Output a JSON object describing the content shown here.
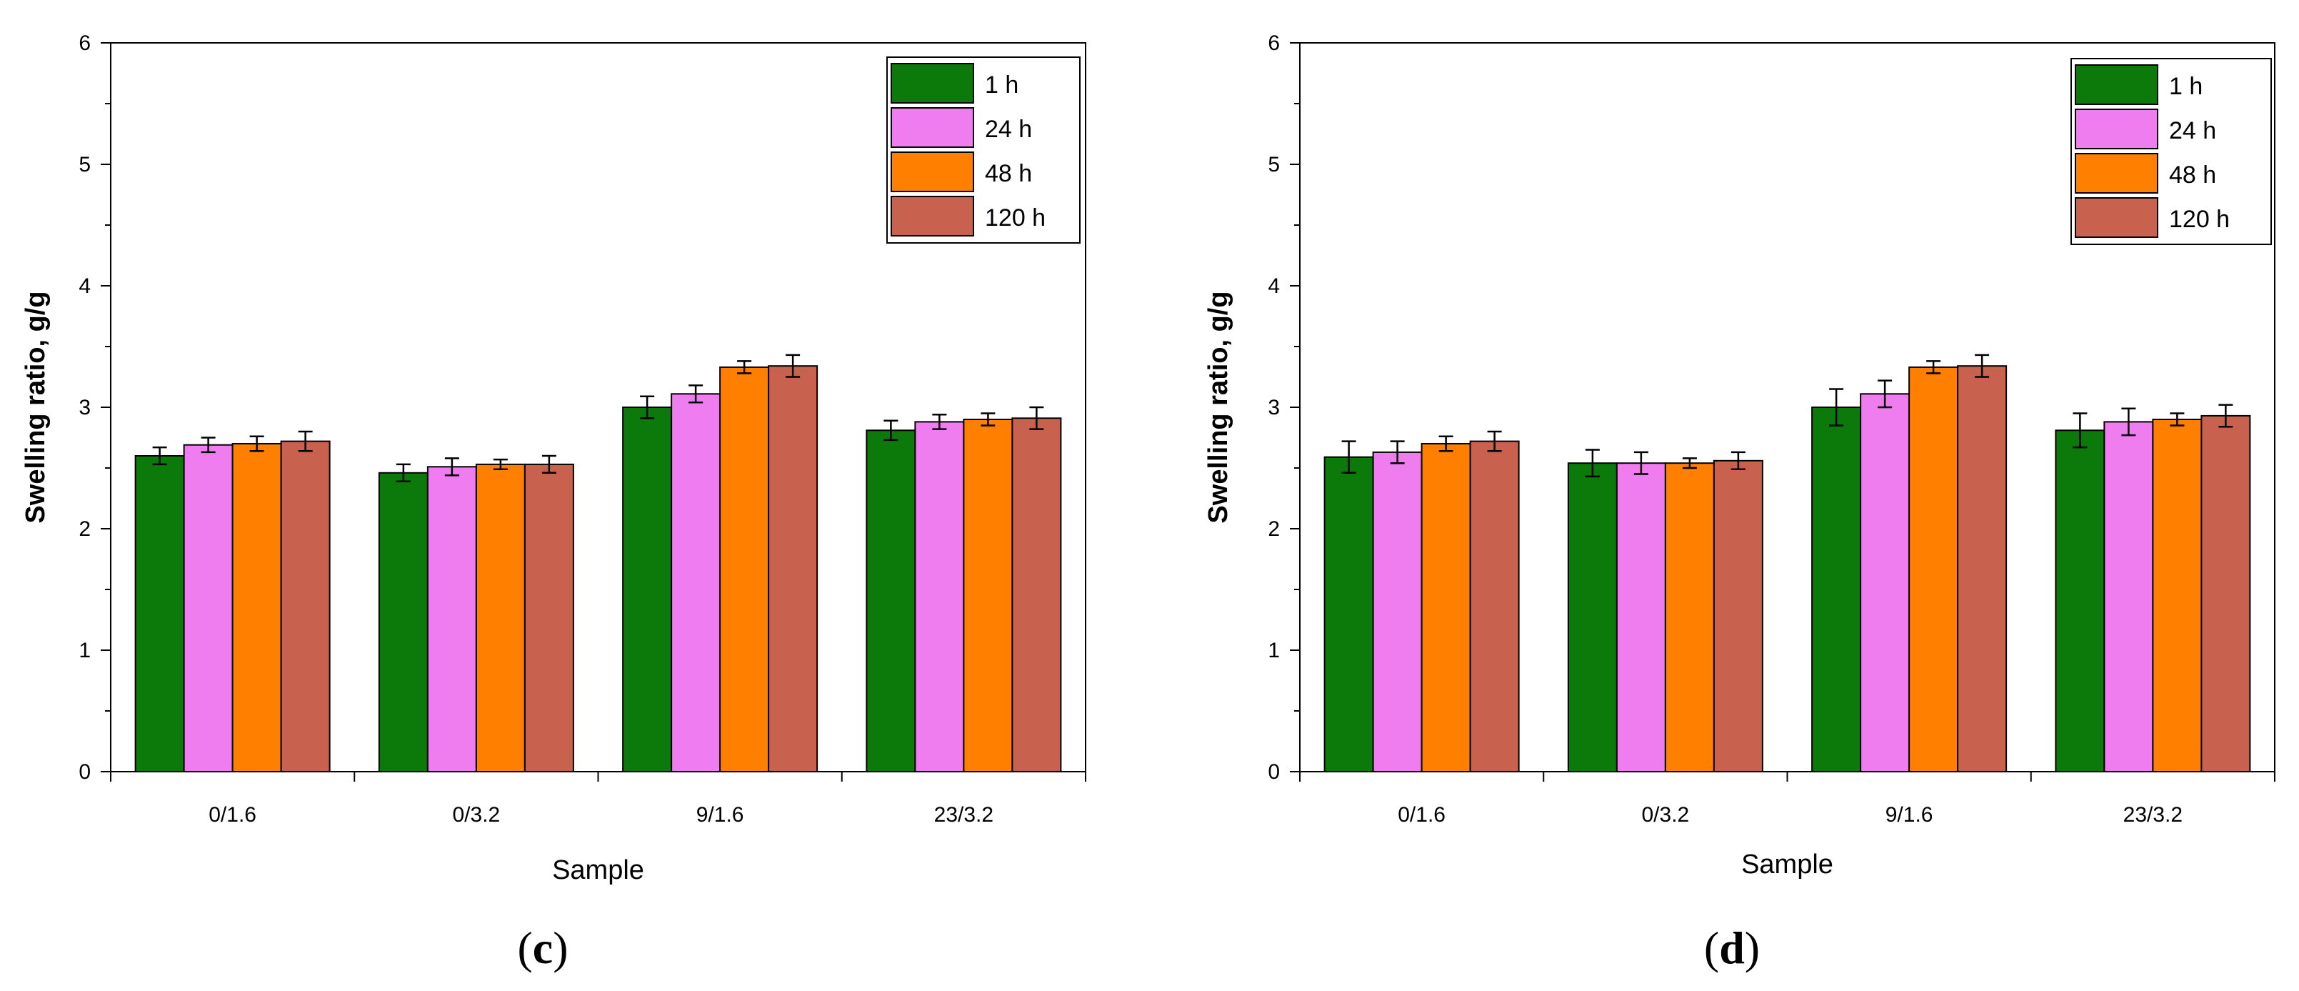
{
  "chart_data": [
    {
      "panel": "(c)",
      "panel_letter": "c",
      "type": "bar",
      "xlabel": "Sample",
      "ylabel": "Swelling ratio, g/g",
      "ylim": [
        0,
        6
      ],
      "yticks": [
        "0",
        "1",
        "2",
        "3",
        "4",
        "5",
        "6"
      ],
      "categories": [
        "0/1.6",
        "0/3.2",
        "9/1.6",
        "23/3.2"
      ],
      "legend_position": "top-right",
      "series": [
        {
          "name": "1 h",
          "color": "#0b7a0b",
          "values": [
            2.6,
            2.46,
            3.0,
            2.81
          ],
          "errors": [
            0.07,
            0.07,
            0.09,
            0.08
          ]
        },
        {
          "name": "24 h",
          "color": "#f07df0",
          "values": [
            2.69,
            2.51,
            3.11,
            2.88
          ],
          "errors": [
            0.06,
            0.07,
            0.07,
            0.06
          ]
        },
        {
          "name": "48 h",
          "color": "#ff8000",
          "values": [
            2.7,
            2.53,
            3.33,
            2.9
          ],
          "errors": [
            0.06,
            0.04,
            0.05,
            0.05
          ]
        },
        {
          "name": "120 h",
          "color": "#c8624e",
          "values": [
            2.72,
            2.53,
            3.34,
            2.91
          ],
          "errors": [
            0.08,
            0.07,
            0.09,
            0.09
          ]
        }
      ]
    },
    {
      "panel": "(d)",
      "panel_letter": "d",
      "type": "bar",
      "xlabel": "Sample",
      "ylabel": "Swelling ratio, g/g",
      "ylim": [
        0,
        6
      ],
      "yticks": [
        "0",
        "1",
        "2",
        "3",
        "4",
        "5",
        "6"
      ],
      "categories": [
        "0/1.6",
        "0/3.2",
        "9/1.6",
        "23/3.2"
      ],
      "legend_position": "top-right",
      "series": [
        {
          "name": "1 h",
          "color": "#0b7a0b",
          "values": [
            2.59,
            2.54,
            3.0,
            2.81
          ],
          "errors": [
            0.13,
            0.11,
            0.15,
            0.14
          ]
        },
        {
          "name": "24 h",
          "color": "#f07df0",
          "values": [
            2.63,
            2.54,
            3.11,
            2.88
          ],
          "errors": [
            0.09,
            0.09,
            0.11,
            0.11
          ]
        },
        {
          "name": "48 h",
          "color": "#ff8000",
          "values": [
            2.7,
            2.54,
            3.33,
            2.9
          ],
          "errors": [
            0.06,
            0.04,
            0.05,
            0.05
          ]
        },
        {
          "name": "120 h",
          "color": "#c8624e",
          "values": [
            2.72,
            2.56,
            3.34,
            2.93
          ],
          "errors": [
            0.08,
            0.07,
            0.09,
            0.09
          ]
        }
      ]
    }
  ]
}
